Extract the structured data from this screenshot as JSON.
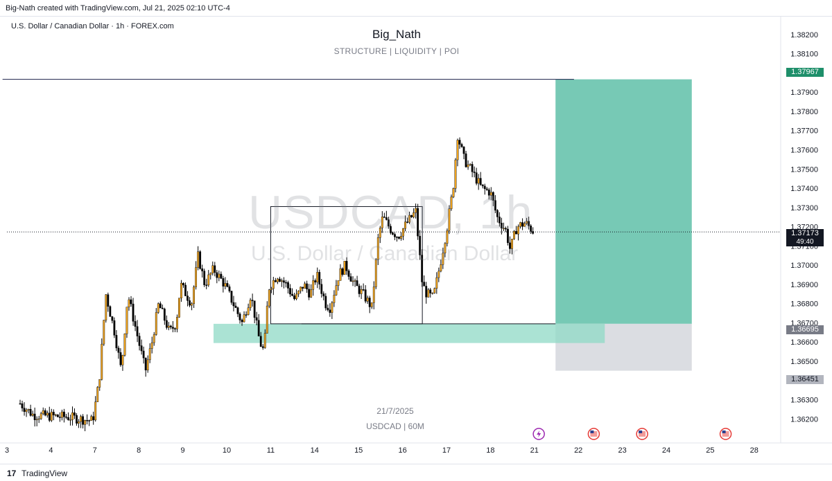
{
  "header": {
    "creator_line": "Big-Nath created with TradingView.com, Jul 21, 2025 02:10 UTC-4"
  },
  "symbol_line": "U.S. Dollar / Canadian Dollar · 1h · FOREX.com",
  "chart_title": "Big_Nath",
  "chart_subtitle": "STRUCTURE |  LIQUIDITY |  POI",
  "watermark": {
    "line1": "USDCAD, 1h",
    "line2": "U.S. Dollar / Canadian Dollar"
  },
  "date_caption": "21/7/2025",
  "timeframe_caption": "USDCAD | 60M",
  "footer": {
    "logo": "17",
    "brand": "TradingView"
  },
  "badges": {
    "take_profit": "1.37967",
    "current_price": "1.37173",
    "countdown": "49:40",
    "entry": "1.36695",
    "stop_loss": "1.36451"
  },
  "colors": {
    "candle_up": "#f0a31c",
    "candle_down": "#000000",
    "target_zone": "#5fbfa8",
    "poi_zone": "#8fdac6",
    "stop_zone": "#d7d9df",
    "tp_badge": "#1e8f6a"
  },
  "event_icons": [
    "flash-event-icon",
    "us-flag-icon",
    "us-flag-icon",
    "us-flag-icon"
  ],
  "chart_data": {
    "type": "candlestick",
    "y_ticks": [
      "1.38200",
      "1.38100",
      "1.38000",
      "1.37900",
      "1.37800",
      "1.37700",
      "1.37600",
      "1.37500",
      "1.37400",
      "1.37300",
      "1.37200",
      "1.37100",
      "1.37000",
      "1.36900",
      "1.36800",
      "1.36700",
      "1.36600",
      "1.36500",
      "1.36400",
      "1.36300",
      "1.36200"
    ],
    "x_ticks": [
      {
        "label": "3",
        "day": 3
      },
      {
        "label": "4",
        "day": 4
      },
      {
        "label": "7",
        "day": 5
      },
      {
        "label": "8",
        "day": 6
      },
      {
        "label": "9",
        "day": 7
      },
      {
        "label": "10",
        "day": 8
      },
      {
        "label": "11",
        "day": 9
      },
      {
        "label": "14",
        "day": 10
      },
      {
        "label": "15",
        "day": 11
      },
      {
        "label": "16",
        "day": 12
      },
      {
        "label": "17",
        "day": 13
      },
      {
        "label": "18",
        "day": 14
      },
      {
        "label": "21",
        "day": 15
      },
      {
        "label": "22",
        "day": 16
      },
      {
        "label": "23",
        "day": 17
      },
      {
        "label": "24",
        "day": 18
      },
      {
        "label": "25",
        "day": 19
      },
      {
        "label": "28",
        "day": 20
      }
    ],
    "ylim": [
      1.3614,
      1.3825
    ],
    "price_path": [
      [
        3.3,
        1.3628
      ],
      [
        3.6,
        1.3622
      ],
      [
        4.4,
        1.3621
      ],
      [
        4.95,
        1.3619
      ],
      [
        5.1,
        1.364
      ],
      [
        5.25,
        1.3685
      ],
      [
        5.45,
        1.3665
      ],
      [
        5.6,
        1.3645
      ],
      [
        5.75,
        1.3685
      ],
      [
        6.0,
        1.366
      ],
      [
        6.15,
        1.3645
      ],
      [
        6.3,
        1.366
      ],
      [
        6.45,
        1.368
      ],
      [
        6.7,
        1.3665
      ],
      [
        6.85,
        1.367
      ],
      [
        6.95,
        1.369
      ],
      [
        7.2,
        1.368
      ],
      [
        7.35,
        1.3705
      ],
      [
        7.5,
        1.369
      ],
      [
        7.7,
        1.3698
      ],
      [
        7.95,
        1.369
      ],
      [
        8.15,
        1.368
      ],
      [
        8.35,
        1.367
      ],
      [
        8.55,
        1.3685
      ],
      [
        8.75,
        1.366
      ],
      [
        8.85,
        1.3655
      ],
      [
        8.95,
        1.3688
      ],
      [
        9.15,
        1.3695
      ],
      [
        9.35,
        1.369
      ],
      [
        9.55,
        1.3682
      ],
      [
        9.75,
        1.369
      ],
      [
        9.9,
        1.3685
      ],
      [
        10.05,
        1.3695
      ],
      [
        10.25,
        1.368
      ],
      [
        10.35,
        1.3678
      ],
      [
        10.55,
        1.3695
      ],
      [
        10.7,
        1.37
      ],
      [
        10.9,
        1.369
      ],
      [
        11.1,
        1.3685
      ],
      [
        11.3,
        1.3678
      ],
      [
        11.45,
        1.3715
      ],
      [
        11.55,
        1.3725
      ],
      [
        11.75,
        1.3718
      ],
      [
        11.9,
        1.3715
      ],
      [
        12.1,
        1.3722
      ],
      [
        12.3,
        1.3728
      ],
      [
        12.45,
        1.369
      ],
      [
        12.55,
        1.3685
      ],
      [
        12.7,
        1.3683
      ],
      [
        12.85,
        1.37
      ],
      [
        13.0,
        1.3718
      ],
      [
        13.15,
        1.374
      ],
      [
        13.25,
        1.3768
      ],
      [
        13.4,
        1.3755
      ],
      [
        13.6,
        1.3748
      ],
      [
        13.8,
        1.374
      ],
      [
        14.0,
        1.3738
      ],
      [
        14.15,
        1.3725
      ],
      [
        14.35,
        1.3718
      ],
      [
        14.45,
        1.3708
      ],
      [
        14.6,
        1.372
      ],
      [
        14.8,
        1.3722
      ],
      [
        15.0,
        1.3717
      ]
    ],
    "levels": {
      "take_profit": 1.37967,
      "entry": 1.36695,
      "stop_loss": 1.36451,
      "current_price": 1.37173
    },
    "position_box": {
      "x_start": 15.48,
      "x_end": 18.58
    },
    "poi_zone": {
      "x_start": 7.7,
      "x_end": 16.6,
      "top": 1.36695,
      "bottom": 1.36595
    },
    "range_box": {
      "x_start": 9.0,
      "x_end": 12.45,
      "top": 1.37305,
      "bottom": 1.36695
    },
    "range_bottom_line": {
      "x_start": 9.7,
      "x_end": 15.48,
      "y": 1.36695
    },
    "prior_high_line": {
      "x_start": 2.9,
      "x_end": 15.9,
      "y": 1.37967
    }
  }
}
